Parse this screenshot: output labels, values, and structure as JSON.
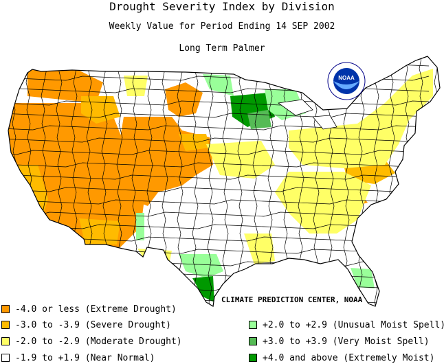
{
  "title": "Drought Severity Index by Division",
  "subtitle": "Weekly Value for Period Ending 14 SEP 2002",
  "index_name": "Long Term Palmer",
  "credit": "CLIMATE PREDICTION CENTER, NOAA",
  "logo_text": "NOAA",
  "colors": {
    "extreme_drought": "#ff9900",
    "severe_drought": "#ffbb00",
    "moderate_drought": "#ffff66",
    "near_normal": "#ffffff",
    "unusual_moist": "#99ff99",
    "very_moist": "#55bb55",
    "extremely_moist": "#009900",
    "outline": "#000000"
  },
  "legend": {
    "drought": [
      {
        "label": "-4.0 or less (Extreme Drought)",
        "color": "#ff9900"
      },
      {
        "label": "-3.0 to -3.9 (Severe Drought)",
        "color": "#ffbb00"
      },
      {
        "label": "-2.0 to -2.9 (Moderate Drought)",
        "color": "#ffff66"
      },
      {
        "label": "-1.9 to +1.9 (Near Normal)",
        "color": "#ffffff"
      }
    ],
    "moist": [
      {
        "label": "+2.0 to +2.9 (Unusual Moist Spell)",
        "color": "#99ff99"
      },
      {
        "label": "+3.0 to +3.9 (Very Moist Spell)",
        "color": "#55bb55"
      },
      {
        "label": "+4.0 and above (Extremely Moist)",
        "color": "#009900"
      }
    ]
  }
}
